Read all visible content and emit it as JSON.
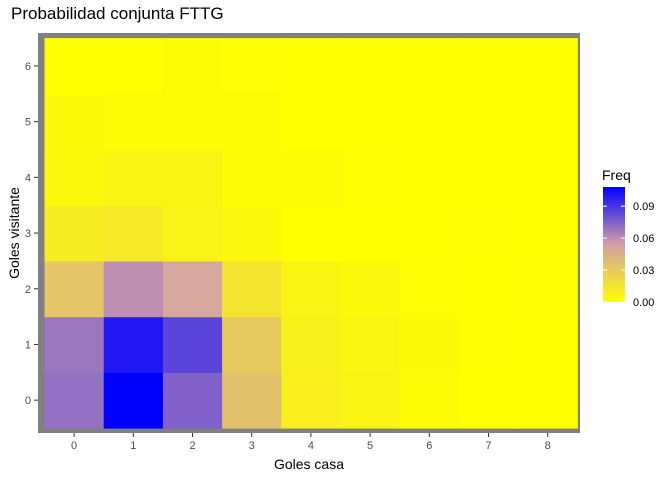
{
  "chart_data": {
    "type": "heatmap",
    "title": "Probabilidad conjunta FTTG",
    "xlabel": "Goles casa",
    "ylabel": "Goles visitante",
    "x": [
      "0",
      "1",
      "2",
      "3",
      "4",
      "5",
      "6",
      "7",
      "8"
    ],
    "y": [
      "0",
      "1",
      "2",
      "3",
      "4",
      "5",
      "6"
    ],
    "values": [
      [
        0.07,
        0.108,
        0.075,
        0.035,
        0.009,
        0.006,
        0.002,
        0.0,
        0.0
      ],
      [
        0.068,
        0.1,
        0.085,
        0.03,
        0.008,
        0.005,
        0.003,
        0.001,
        0.0
      ],
      [
        0.033,
        0.06,
        0.05,
        0.015,
        0.006,
        0.004,
        0.001,
        0.0,
        0.001
      ],
      [
        0.011,
        0.012,
        0.007,
        0.004,
        0.0,
        0.0,
        0.0,
        0.001,
        0.0
      ],
      [
        0.004,
        0.006,
        0.006,
        0.002,
        0.002,
        0.001,
        0.0,
        0.0,
        0.0
      ],
      [
        0.003,
        0.002,
        0.002,
        0.002,
        0.0,
        0.0,
        0.0,
        0.0,
        0.0
      ],
      [
        0.0,
        0.0,
        0.002,
        0.001,
        0.0,
        0.0,
        0.0,
        0.0,
        0.0
      ]
    ],
    "color_scale": {
      "low": "#ffff00",
      "mid": "#d3a0a8",
      "high": "#0000ff",
      "min": 0.0,
      "max": 0.108
    },
    "legend": {
      "title": "Freq",
      "position": "right",
      "breaks": [
        0.0,
        0.03,
        0.06,
        0.09
      ],
      "labels": [
        "0.00",
        "0.03",
        "0.06",
        "0.09"
      ]
    },
    "background": "#808080",
    "grid": true
  }
}
